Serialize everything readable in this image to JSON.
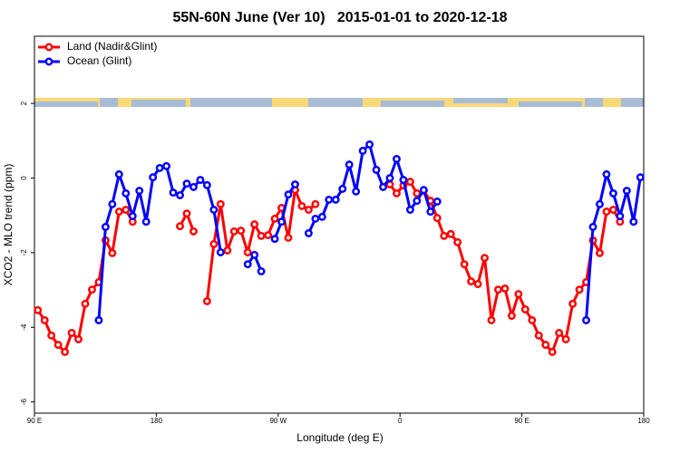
{
  "chart_data": {
    "type": "line",
    "title": "55N-60N June (Ver 10)   2015-01-01 to 2020-12-18",
    "x_label": "Longitude (deg E)",
    "y_label": "XCO2 - MLO trend (ppm)",
    "xlim": [
      90,
      540
    ],
    "xticks": [
      {
        "value": 90,
        "label": "90 E"
      },
      180,
      {
        "value": 270,
        "label": "90 W"
      },
      {
        "value": 360,
        "label": "0"
      },
      {
        "value": 450,
        "label": "90 E"
      },
      {
        "value": 540,
        "label": "180"
      }
    ],
    "ylim": [
      -6.3,
      3.8
    ],
    "yticks": [
      2,
      0,
      -2,
      -4,
      -6
    ],
    "legend": "top-left",
    "x": [
      92.5,
      97.5,
      102.5,
      107.5,
      112.5,
      117.5,
      122.5,
      127.5,
      132.5,
      137.5,
      142.5,
      147.5,
      152.5,
      157.5,
      162.5,
      167.5,
      172.5,
      177.5,
      182.5,
      187.5,
      192.5,
      197.5,
      202.5,
      207.5,
      212.5,
      217.5,
      222.5,
      227.5,
      232.5,
      237.5,
      242.5,
      247.5,
      252.5,
      257.5,
      262.5,
      267.5,
      272.5,
      277.5,
      282.5,
      287.5,
      292.5,
      297.5,
      302.5,
      307.5,
      312.5,
      317.5,
      322.5,
      327.5,
      332.5,
      337.5,
      342.5,
      347.5,
      352.5,
      357.5,
      362.5,
      367.5,
      372.5,
      377.5,
      382.5,
      387.5,
      392.5,
      397.5,
      402.5,
      407.5,
      412.5,
      417.5,
      422.5,
      427.5,
      432.5,
      437.5,
      442.5,
      447.5,
      452.5,
      457.5,
      462.5,
      467.5,
      472.5,
      477.5,
      482.5,
      487.5,
      492.5,
      497.5,
      502.5,
      507.5,
      512.5,
      517.5,
      522.5,
      527.5,
      532.5,
      537.5
    ],
    "series": [
      {
        "name": "Land (Nadir&Glint)",
        "color": "#ff0000",
        "values": [
          -3.54,
          -3.81,
          -4.22,
          -4.47,
          -4.66,
          -4.15,
          -4.32,
          -3.37,
          -2.99,
          -2.79,
          -1.67,
          -2.01,
          -0.9,
          -0.85,
          -1.17,
          null,
          null,
          null,
          null,
          null,
          null,
          -1.29,
          -0.95,
          -1.43,
          null,
          -3.3,
          -1.77,
          -0.7,
          -1.94,
          -1.43,
          -1.41,
          -1.99,
          -1.24,
          -1.55,
          -1.53,
          -1.09,
          -0.8,
          -1.6,
          -0.32,
          -0.75,
          -0.85,
          -0.7,
          null,
          null,
          null,
          null,
          null,
          null,
          null,
          null,
          null,
          null,
          -0.17,
          -0.41,
          -0.2,
          -0.1,
          -0.41,
          -0.34,
          -0.61,
          -1.07,
          -1.55,
          -1.5,
          -1.72,
          -2.31,
          -2.77,
          -2.84,
          -2.14,
          -3.81,
          -2.99,
          -2.96,
          -3.69,
          -3.11,
          -3.52,
          -3.81,
          -4.22,
          -4.47,
          -4.66,
          -4.15,
          -4.32,
          -3.37,
          -2.99,
          -2.79,
          -1.67,
          -2.01,
          -0.9,
          -0.85,
          -1.17,
          null,
          null,
          null
        ]
      },
      {
        "name": "Ocean (Glint)",
        "color": "#0000ff",
        "values": [
          null,
          null,
          null,
          null,
          null,
          null,
          null,
          null,
          null,
          -3.81,
          -1.31,
          -0.7,
          0.1,
          -0.41,
          -1.02,
          -0.34,
          -1.17,
          0.02,
          0.27,
          0.32,
          -0.39,
          -0.46,
          -0.15,
          -0.24,
          -0.05,
          -0.19,
          -0.85,
          -1.99,
          null,
          null,
          null,
          -2.31,
          -2.06,
          -2.5,
          null,
          -1.63,
          -1.17,
          -0.44,
          -0.17,
          null,
          -1.48,
          -1.09,
          -1.04,
          -0.58,
          -0.58,
          -0.29,
          0.36,
          -0.36,
          0.73,
          0.9,
          0.22,
          -0.24,
          0.0,
          0.51,
          -0.05,
          -0.85,
          -0.61,
          -0.32,
          -0.9,
          -0.63,
          null,
          null,
          null,
          null,
          null,
          null,
          null,
          null,
          null,
          null,
          null,
          null,
          null,
          null,
          null,
          null,
          null,
          null,
          null,
          null,
          null,
          -3.81,
          -1.31,
          -0.7,
          0.1,
          -0.41,
          -1.02,
          -0.34,
          -1.17,
          0.02
        ]
      }
    ]
  }
}
